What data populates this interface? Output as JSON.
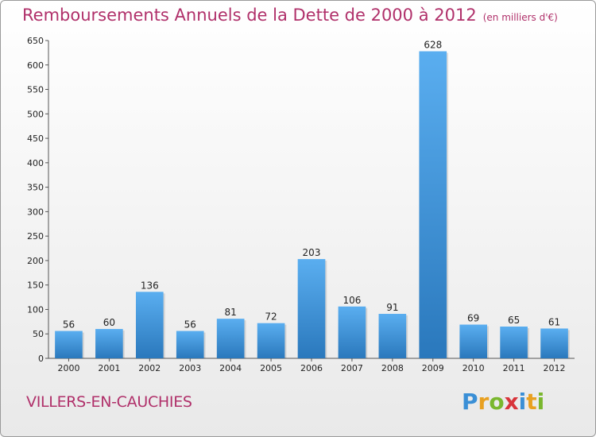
{
  "title": "Remboursements Annuels de la Dette de 2000 à 2012",
  "unit": "(en milliers d'€)",
  "commune": "VILLERS-EN-CAUCHIES",
  "logo": {
    "letters": [
      "P",
      "r",
      "o",
      "x",
      "i",
      "t",
      "i"
    ],
    "colors": [
      "#3a8fd6",
      "#e8a020",
      "#7ab72e",
      "#d8343a",
      "#3a8fd6",
      "#e8a020",
      "#7ab72e"
    ]
  },
  "colors": {
    "bar_top": "#5aaef0",
    "bar_bottom": "#2a78bc",
    "accent": "#b0306a"
  },
  "chart_data": {
    "type": "bar",
    "categories": [
      "2000",
      "2001",
      "2002",
      "2003",
      "2004",
      "2005",
      "2006",
      "2007",
      "2008",
      "2009",
      "2010",
      "2011",
      "2012"
    ],
    "values": [
      56,
      60,
      136,
      56,
      81,
      72,
      203,
      106,
      91,
      628,
      69,
      65,
      61
    ],
    "value_labels": [
      "56",
      "60",
      "136",
      "56",
      "81",
      "72",
      "203",
      "106",
      "91",
      "628",
      "69",
      "65",
      "61"
    ],
    "ylim": [
      0,
      650
    ],
    "yticks": [
      0,
      50,
      100,
      150,
      200,
      250,
      300,
      350,
      400,
      450,
      500,
      550,
      600,
      650
    ],
    "ytick_labels": [
      "0",
      "50",
      "100",
      "150",
      "200",
      "250",
      "300",
      "350",
      "400",
      "450",
      "500",
      "550",
      "600",
      "650"
    ],
    "grid": false
  }
}
